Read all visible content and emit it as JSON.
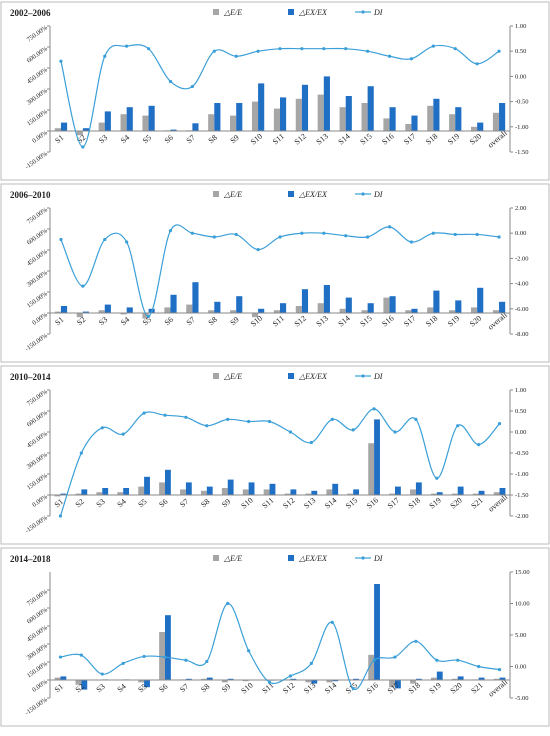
{
  "chart_data": [
    {
      "type": "bar",
      "title": "2002–2006",
      "categories": [
        "S1",
        "S2",
        "S3",
        "S4",
        "S5",
        "S6",
        "S7",
        "S8",
        "S9",
        "S10",
        "S11",
        "S12",
        "S13",
        "S14",
        "S15",
        "S16",
        "S17",
        "S18",
        "S19",
        "S20",
        "overall"
      ],
      "series": [
        {
          "name": "△E/E",
          "color": "#a6a6a6",
          "values": [
            20,
            -30,
            60,
            120,
            110,
            5,
            5,
            120,
            110,
            210,
            160,
            230,
            260,
            170,
            200,
            90,
            50,
            180,
            120,
            30,
            130
          ]
        },
        {
          "name": "△EX/EX",
          "color": "#1f6fc5",
          "values": [
            60,
            20,
            140,
            170,
            180,
            10,
            55,
            200,
            200,
            340,
            240,
            330,
            390,
            250,
            320,
            170,
            110,
            230,
            170,
            60,
            200
          ]
        },
        {
          "name": "DI",
          "color": "#3a9fd8",
          "type": "line",
          "axis": "y2",
          "values": [
            0.3,
            -1.4,
            0.4,
            0.6,
            0.55,
            -0.1,
            -0.2,
            0.5,
            0.4,
            0.5,
            0.55,
            0.55,
            0.55,
            0.55,
            0.5,
            0.4,
            0.35,
            0.6,
            0.55,
            0.25,
            0.5
          ]
        }
      ],
      "ylim": [
        -150,
        750
      ],
      "yticks": [
        {
          "value": -150,
          "label": "-150.00%"
        },
        {
          "value": 0,
          "label": "0.00%"
        },
        {
          "value": 150,
          "label": "150.00%"
        },
        {
          "value": 300,
          "label": "300.00%"
        },
        {
          "value": 450,
          "label": "450.00%"
        },
        {
          "value": 600,
          "label": "600.00%"
        },
        {
          "value": 750,
          "label": "750.00%"
        }
      ],
      "y2lim": [
        -1.5,
        1.0
      ],
      "y2ticks": [
        {
          "value": -1.5,
          "label": "-1.50"
        },
        {
          "value": -1,
          "label": "-1.00"
        },
        {
          "value": -0.5,
          "label": "-0.50"
        },
        {
          "value": 0,
          "label": "0.00"
        },
        {
          "value": 0.5,
          "label": "0.50"
        },
        {
          "value": 1,
          "label": "1.00"
        }
      ]
    },
    {
      "type": "bar",
      "title": "2006–2010",
      "categories": [
        "S1",
        "S2",
        "S3",
        "S4",
        "S5",
        "S6",
        "S7",
        "S8",
        "S9",
        "S10",
        "S11",
        "S12",
        "S13",
        "S14",
        "S15",
        "S16",
        "S17",
        "S18",
        "S19",
        "S20",
        "overall"
      ],
      "series": [
        {
          "name": "△E/E",
          "color": "#a6a6a6",
          "values": [
            10,
            -30,
            20,
            -10,
            -40,
            40,
            60,
            20,
            20,
            -30,
            20,
            50,
            70,
            30,
            20,
            110,
            20,
            40,
            20,
            40,
            20
          ]
        },
        {
          "name": "△EX/EX",
          "color": "#1f6fc5",
          "values": [
            50,
            10,
            60,
            40,
            30,
            130,
            220,
            80,
            120,
            30,
            70,
            170,
            200,
            110,
            70,
            120,
            30,
            160,
            90,
            180,
            80
          ]
        },
        {
          "name": "DI",
          "color": "#3a9fd8",
          "type": "line",
          "axis": "y2",
          "values": [
            -0.5,
            -4.2,
            -0.5,
            -0.7,
            -6.6,
            0.2,
            0,
            -0.3,
            -0.1,
            -1.3,
            -0.3,
            0,
            0,
            -0.2,
            -0.3,
            0.5,
            -0.7,
            0,
            -0.1,
            -0.1,
            -0.3
          ]
        }
      ],
      "ylim": [
        -150,
        750
      ],
      "yticks": [
        {
          "value": -150,
          "label": "-150.00%"
        },
        {
          "value": 0,
          "label": "0.00%"
        },
        {
          "value": 150,
          "label": "150.00%"
        },
        {
          "value": 300,
          "label": "300.00%"
        },
        {
          "value": 450,
          "label": "450.00%"
        },
        {
          "value": 600,
          "label": "600.00%"
        },
        {
          "value": 750,
          "label": "750.00%"
        }
      ],
      "y2lim": [
        -8,
        2
      ],
      "y2ticks": [
        {
          "value": -8,
          "label": "-8.00"
        },
        {
          "value": -6,
          "label": "-6.00"
        },
        {
          "value": -4,
          "label": "-4.00"
        },
        {
          "value": -2,
          "label": "-2.00"
        },
        {
          "value": 0,
          "label": "0.00"
        },
        {
          "value": 2,
          "label": "2.00"
        }
      ]
    },
    {
      "type": "bar",
      "title": "2010–2014",
      "categories": [
        "S1",
        "S2",
        "S3",
        "S4",
        "S5",
        "S6",
        "S7",
        "S8",
        "S9",
        "S10",
        "S11",
        "S12",
        "S13",
        "S14",
        "S15",
        "S16",
        "S17",
        "S18",
        "S19",
        "S20",
        "S21",
        "overall"
      ],
      "series": [
        {
          "name": "△E/E",
          "color": "#a6a6a6",
          "values": [
            -10,
            10,
            20,
            20,
            60,
            90,
            40,
            30,
            50,
            40,
            40,
            10,
            10,
            40,
            10,
            370,
            10,
            40,
            10,
            10,
            10,
            20
          ]
        },
        {
          "name": "△EX/EX",
          "color": "#1f6fc5",
          "values": [
            10,
            40,
            50,
            50,
            130,
            180,
            90,
            60,
            110,
            90,
            80,
            40,
            30,
            80,
            40,
            540,
            60,
            90,
            20,
            60,
            30,
            50
          ]
        },
        {
          "name": "DI",
          "color": "#3a9fd8",
          "type": "line",
          "axis": "y2",
          "values": [
            -2.0,
            -0.5,
            0.1,
            -0.05,
            0.45,
            0.4,
            0.35,
            0.15,
            0.3,
            0.25,
            0.25,
            0.0,
            -0.25,
            0.3,
            0.05,
            0.55,
            0.0,
            0.3,
            -1.1,
            0.15,
            -0.3,
            0.2
          ]
        }
      ],
      "ylim": [
        -150,
        750
      ],
      "yticks": [
        {
          "value": -150,
          "label": "-150.00%"
        },
        {
          "value": 0,
          "label": "0.00%"
        },
        {
          "value": 150,
          "label": "150.00%"
        },
        {
          "value": 300,
          "label": "300.00%"
        },
        {
          "value": 450,
          "label": "450.00%"
        },
        {
          "value": 600,
          "label": "600.00%"
        },
        {
          "value": 750,
          "label": "750.00%"
        }
      ],
      "y2lim": [
        -2,
        1
      ],
      "y2ticks": [
        {
          "value": -2,
          "label": "-2.00"
        },
        {
          "value": -1.5,
          "label": "-1.50"
        },
        {
          "value": -1,
          "label": "-1.00"
        },
        {
          "value": -0.5,
          "label": "-0.50"
        },
        {
          "value": 0,
          "label": "0.00"
        },
        {
          "value": 0.5,
          "label": "0.50"
        },
        {
          "value": 1,
          "label": "1.00"
        }
      ]
    },
    {
      "type": "bar",
      "title": "2014–2018",
      "categories": [
        "S1",
        "S2",
        "S3",
        "S4",
        "S5",
        "S6",
        "S7",
        "S8",
        "S9",
        "S10",
        "S11",
        "S12",
        "S13",
        "S14",
        "S15",
        "S16",
        "S17",
        "S18",
        "S19",
        "S20",
        "S21",
        "overall"
      ],
      "series": [
        {
          "name": "△E/E",
          "color": "#a6a6a6",
          "values": [
            20,
            -40,
            0,
            0,
            -20,
            400,
            5,
            10,
            -20,
            -10,
            -5,
            5,
            -20,
            -20,
            5,
            210,
            -60,
            -30,
            20,
            10,
            5,
            10
          ]
        },
        {
          "name": "△EX/EX",
          "color": "#1f6fc5",
          "values": [
            30,
            -80,
            5,
            5,
            -60,
            540,
            10,
            20,
            10,
            0,
            -5,
            10,
            -30,
            -10,
            10,
            800,
            -70,
            10,
            70,
            30,
            20,
            20
          ]
        },
        {
          "name": "DI",
          "color": "#3a9fd8",
          "type": "line",
          "axis": "y2",
          "values": [
            1.5,
            1.8,
            -1.2,
            0.5,
            1.6,
            1.5,
            1.0,
            0.8,
            10,
            2.5,
            -2.5,
            -1.5,
            0.5,
            7,
            -3.5,
            1,
            1.5,
            4,
            1,
            1,
            0,
            -0.5
          ]
        }
      ],
      "ylim": [
        -150,
        900
      ],
      "yticks": [
        {
          "value": -150,
          "label": "-150.00%"
        },
        {
          "value": 0,
          "label": "0.00%"
        },
        {
          "value": 150,
          "label": "150.00%"
        },
        {
          "value": 300,
          "label": "300.00%"
        },
        {
          "value": 450,
          "label": "450.00%"
        },
        {
          "value": 600,
          "label": "600.00%"
        },
        {
          "value": 750,
          "label": "750.00%"
        }
      ],
      "y2lim": [
        -5,
        15
      ],
      "y2ticks": [
        {
          "value": -5,
          "label": "-5.00"
        },
        {
          "value": 0,
          "label": "0.00"
        },
        {
          "value": 5,
          "label": "5.00"
        },
        {
          "value": 10,
          "label": "10.00"
        },
        {
          "value": 15,
          "label": "15.00"
        }
      ]
    }
  ]
}
